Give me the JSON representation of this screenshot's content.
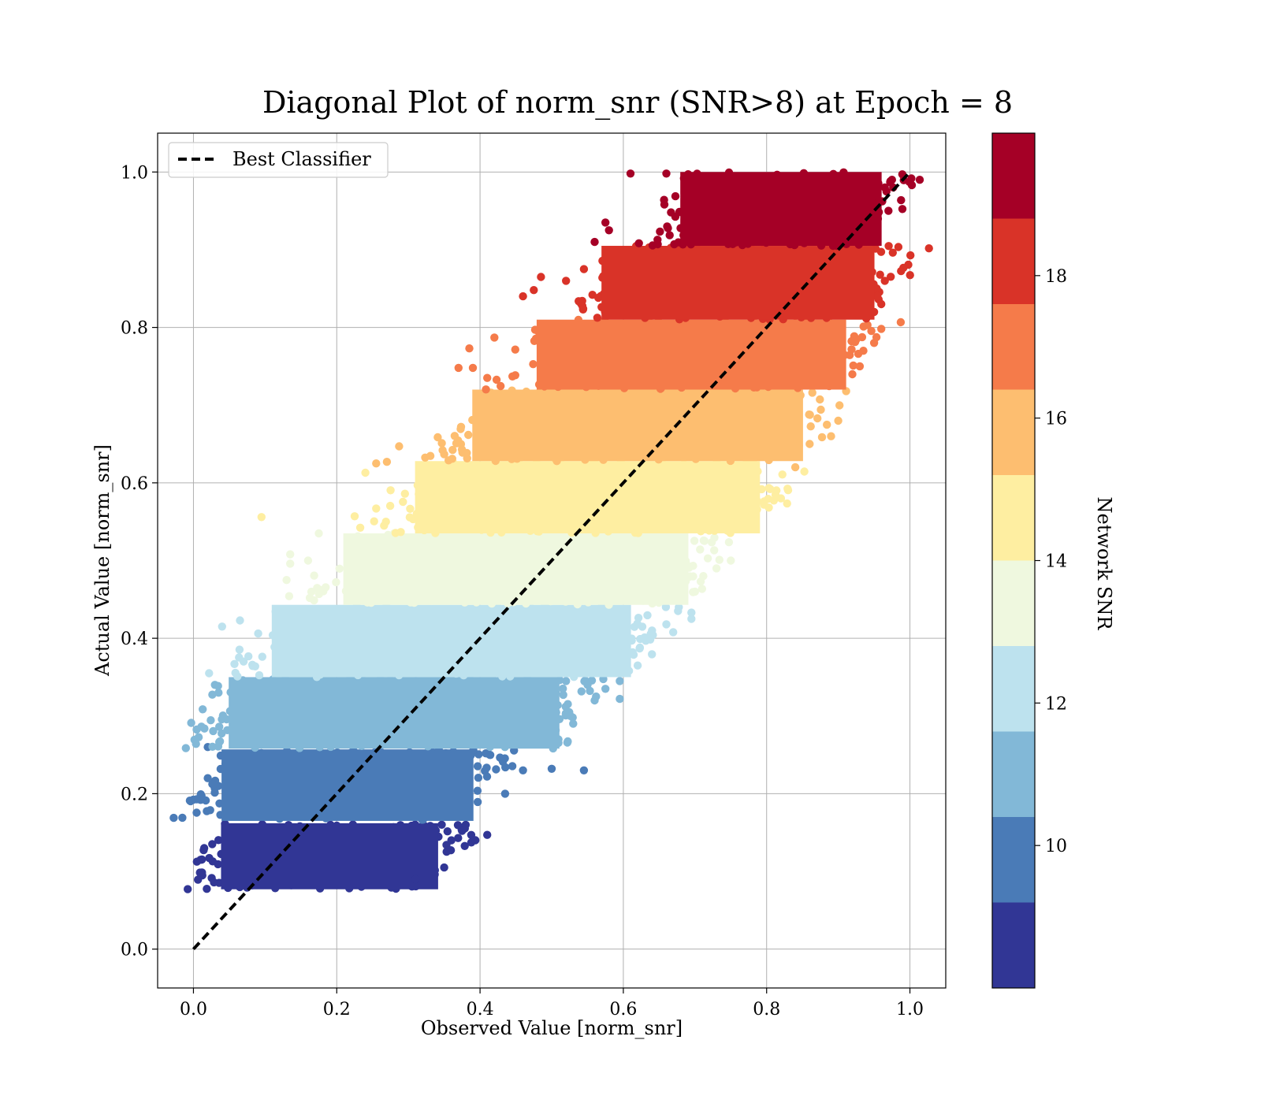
{
  "chart_data": {
    "type": "scatter",
    "title": "Diagonal Plot of norm_snr (SNR>8) at Epoch = 8",
    "xlabel": "Observed Value [norm_snr]",
    "ylabel": "Actual Value [norm_snr]",
    "xlim": [
      -0.05,
      1.05
    ],
    "ylim": [
      -0.05,
      1.05
    ],
    "xticks": [
      "0.0",
      "0.2",
      "0.4",
      "0.6",
      "0.8",
      "1.0"
    ],
    "yticks": [
      "0.0",
      "0.2",
      "0.4",
      "0.6",
      "0.8",
      "1.0"
    ],
    "xtick_values": [
      0.0,
      0.2,
      0.4,
      0.6,
      0.8,
      1.0
    ],
    "ytick_values": [
      0.0,
      0.2,
      0.4,
      0.6,
      0.8,
      1.0
    ],
    "grid": true,
    "legend": {
      "placement": "top-left",
      "entries": [
        "Best Classifier"
      ]
    },
    "reference_line": {
      "name": "Best Classifier",
      "style": "dashed",
      "color": "#000000",
      "x": [
        0.0,
        1.0
      ],
      "y": [
        0.0,
        1.0
      ]
    },
    "colorbar": {
      "label": "Network SNR",
      "range": [
        8,
        20
      ],
      "ticks": [
        "10",
        "12",
        "14",
        "16",
        "18"
      ],
      "tick_values": [
        10,
        12,
        14,
        16,
        18
      ],
      "bins": [
        {
          "from": 8,
          "to": 9.2,
          "color": "#313695"
        },
        {
          "from": 9.2,
          "to": 10.4,
          "color": "#4a7bb7"
        },
        {
          "from": 10.4,
          "to": 11.6,
          "color": "#82b8d7"
        },
        {
          "from": 11.6,
          "to": 12.8,
          "color": "#bde2ee"
        },
        {
          "from": 12.8,
          "to": 14.0,
          "color": "#eff8df"
        },
        {
          "from": 14.0,
          "to": 15.2,
          "color": "#feeea1"
        },
        {
          "from": 15.2,
          "to": 16.4,
          "color": "#fdbe70"
        },
        {
          "from": 16.4,
          "to": 17.6,
          "color": "#f57b4a"
        },
        {
          "from": 17.6,
          "to": 18.8,
          "color": "#d93328"
        },
        {
          "from": 18.8,
          "to": 20.0,
          "color": "#a50026"
        }
      ]
    },
    "series": [
      {
        "snr_bin": [
          8.0,
          9.2
        ],
        "color": "#313695",
        "band_y": [
          0.077,
          0.162
        ],
        "band_x": [
          0.03,
          0.35
        ],
        "outliers": [
          [
            0.01,
            0.115
          ],
          [
            0.015,
            0.13
          ],
          [
            0.41,
            0.147
          ],
          [
            0.36,
            0.14
          ],
          [
            0.35,
            0.105
          ],
          [
            0.38,
            0.16
          ],
          [
            0.31,
            0.09
          ]
        ]
      },
      {
        "snr_bin": [
          9.2,
          10.4
        ],
        "color": "#4a7bb7",
        "band_y": [
          0.165,
          0.257
        ],
        "band_x": [
          0.03,
          0.4
        ],
        "outliers": [
          [
            0.545,
            0.23
          ],
          [
            0.5,
            0.232
          ],
          [
            0.435,
            0.2
          ],
          [
            0.43,
            0.245
          ],
          [
            0.46,
            0.23
          ],
          [
            0.02,
            0.22
          ],
          [
            0.02,
            0.26
          ]
        ]
      },
      {
        "snr_bin": [
          10.4,
          11.6
        ],
        "color": "#82b8d7",
        "band_y": [
          0.258,
          0.35
        ],
        "band_x": [
          0.04,
          0.52
        ],
        "outliers": [
          [
            0.595,
            0.345
          ],
          [
            0.595,
            0.322
          ],
          [
            0.55,
            0.34
          ],
          [
            0.52,
            0.345
          ],
          [
            0.53,
            0.29
          ],
          [
            0.56,
            0.32
          ],
          [
            0.575,
            0.335
          ],
          [
            0.03,
            0.34
          ],
          [
            0.035,
            0.33
          ]
        ]
      },
      {
        "snr_bin": [
          11.6,
          12.8
        ],
        "color": "#bde2ee",
        "band_y": [
          0.35,
          0.443
        ],
        "band_x": [
          0.1,
          0.62
        ],
        "outliers": [
          [
            0.04,
            0.415
          ],
          [
            0.065,
            0.423
          ],
          [
            0.62,
            0.365
          ],
          [
            0.695,
            0.425
          ],
          [
            0.695,
            0.433
          ],
          [
            0.64,
            0.41
          ],
          [
            0.66,
            0.418
          ],
          [
            0.6,
            0.39
          ],
          [
            0.07,
            0.37
          ]
        ]
      },
      {
        "snr_bin": [
          12.8,
          14.0
        ],
        "color": "#eff8df",
        "band_y": [
          0.443,
          0.535
        ],
        "band_x": [
          0.2,
          0.7
        ],
        "outliers": [
          [
            0.135,
            0.508
          ],
          [
            0.135,
            0.496
          ],
          [
            0.13,
            0.475
          ],
          [
            0.175,
            0.535
          ],
          [
            0.16,
            0.5
          ],
          [
            0.7,
            0.46
          ],
          [
            0.73,
            0.49
          ],
          [
            0.75,
            0.5
          ]
        ]
      },
      {
        "snr_bin": [
          14.0,
          15.2
        ],
        "color": "#feeea1",
        "band_y": [
          0.535,
          0.628
        ],
        "band_x": [
          0.3,
          0.8
        ],
        "outliers": [
          [
            0.095,
            0.556
          ],
          [
            0.24,
            0.613
          ],
          [
            0.225,
            0.557
          ],
          [
            0.255,
            0.567
          ],
          [
            0.82,
            0.58
          ],
          [
            0.805,
            0.592
          ],
          [
            0.78,
            0.56
          ],
          [
            0.76,
            0.55
          ]
        ]
      },
      {
        "snr_bin": [
          15.2,
          16.4
        ],
        "color": "#fdbe70",
        "band_y": [
          0.628,
          0.72
        ],
        "band_x": [
          0.38,
          0.86
        ],
        "outliers": [
          [
            0.287,
            0.647
          ],
          [
            0.27,
            0.627
          ],
          [
            0.255,
            0.625
          ],
          [
            0.84,
            0.62
          ],
          [
            0.845,
            0.648
          ],
          [
            0.86,
            0.65
          ],
          [
            0.89,
            0.66
          ],
          [
            0.9,
            0.68
          ]
        ]
      },
      {
        "snr_bin": [
          16.4,
          17.6
        ],
        "color": "#f57b4a",
        "band_y": [
          0.72,
          0.81
        ],
        "band_x": [
          0.47,
          0.92
        ],
        "outliers": [
          [
            0.385,
            0.773
          ],
          [
            0.42,
            0.787
          ],
          [
            0.39,
            0.748
          ],
          [
            0.37,
            0.748
          ],
          [
            0.41,
            0.735
          ],
          [
            0.93,
            0.75
          ],
          [
            0.935,
            0.77
          ],
          [
            0.95,
            0.78
          ]
        ]
      },
      {
        "snr_bin": [
          17.6,
          18.8
        ],
        "color": "#d93328",
        "band_y": [
          0.81,
          0.905
        ],
        "band_x": [
          0.56,
          0.96
        ],
        "outliers": [
          [
            0.485,
            0.865
          ],
          [
            0.475,
            0.848
          ],
          [
            0.46,
            0.84
          ],
          [
            0.52,
            0.86
          ],
          [
            0.545,
            0.875
          ],
          [
            0.95,
            0.82
          ],
          [
            0.96,
            0.83
          ],
          [
            0.965,
            0.86
          ]
        ]
      },
      {
        "snr_bin": [
          18.8,
          20.0
        ],
        "color": "#a50026",
        "band_y": [
          0.905,
          1.0
        ],
        "band_x": [
          0.67,
          0.97
        ],
        "outliers": [
          [
            0.61,
            0.998
          ],
          [
            0.66,
            0.998
          ],
          [
            0.575,
            0.935
          ],
          [
            0.58,
            0.925
          ],
          [
            0.56,
            0.91
          ],
          [
            0.955,
            0.96
          ],
          [
            0.965,
            0.98
          ],
          [
            0.975,
            0.99
          ],
          [
            0.97,
            0.95
          ]
        ]
      }
    ]
  }
}
